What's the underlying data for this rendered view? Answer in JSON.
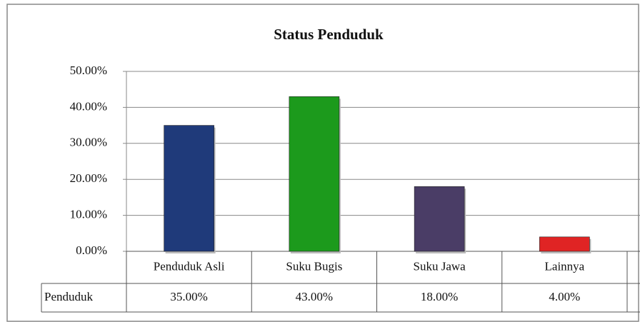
{
  "chart_data": {
    "type": "bar",
    "title": "Status Penduduk",
    "categories": [
      "Penduduk Asli",
      "Suku Bugis",
      "Suku Jawa",
      "Lainnya"
    ],
    "series": [
      {
        "name": "Penduduk",
        "colors": [
          "#1f3a7a",
          "#1c9a1c",
          "#4a3d66",
          "#e02424"
        ],
        "values": [
          35,
          43,
          18,
          4
        ],
        "value_labels": [
          "35.00%",
          "43.00%",
          "18.00%",
          "4.00%"
        ]
      }
    ],
    "ylim": [
      0,
      50
    ],
    "yticks": [
      {
        "value": 0,
        "label": "0.00%"
      },
      {
        "value": 10,
        "label": "10.00%"
      },
      {
        "value": 20,
        "label": "20.00%"
      },
      {
        "value": 30,
        "label": "30.00%"
      },
      {
        "value": 40,
        "label": "40.00%"
      },
      {
        "value": 50,
        "label": "50.00%"
      }
    ],
    "grid": true
  }
}
